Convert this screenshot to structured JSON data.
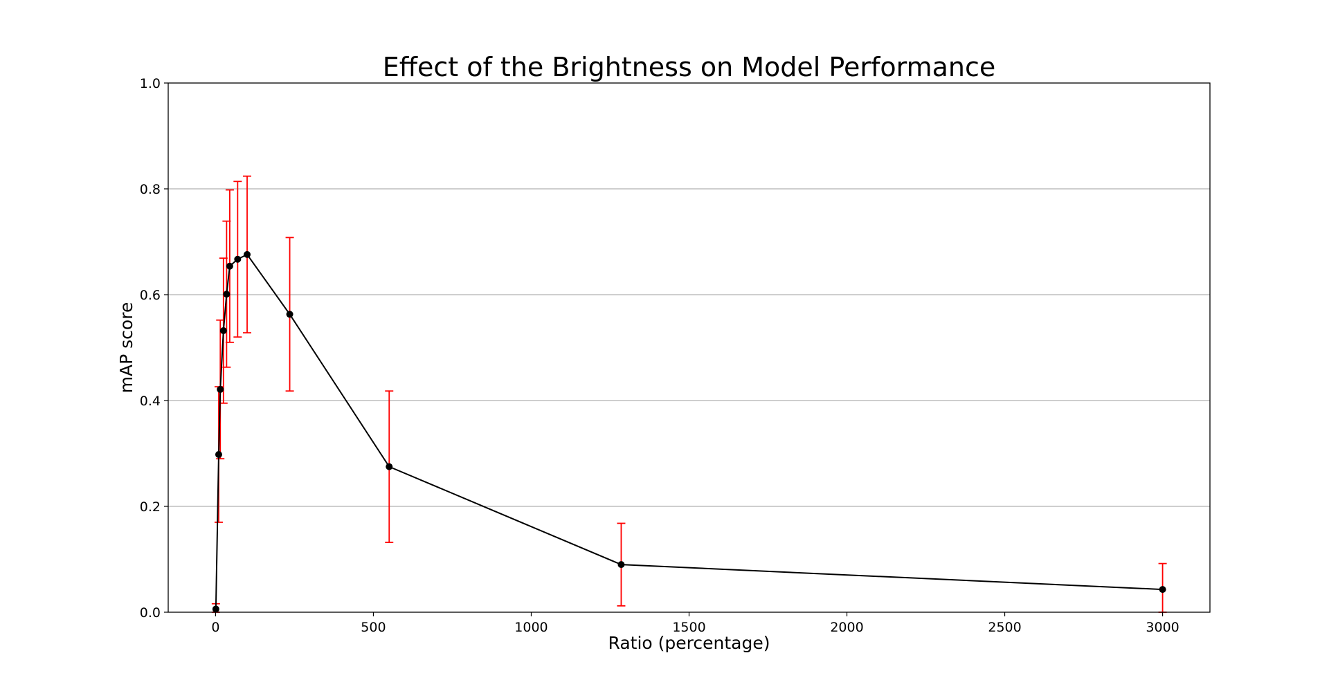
{
  "chart_data": {
    "type": "line",
    "title": "Effect of the Brightness on Model Performance",
    "xlabel": "Ratio (percentage)",
    "ylabel": "mAP score",
    "xlim": [
      -150,
      3150
    ],
    "ylim": [
      0.0,
      1.0
    ],
    "xticks": [
      0,
      500,
      1000,
      1500,
      2000,
      2500,
      3000
    ],
    "xtick_labels": [
      "0",
      "500",
      "1000",
      "1500",
      "2000",
      "2500",
      "3000"
    ],
    "yticks": [
      0.0,
      0.2,
      0.4,
      0.6,
      0.8,
      1.0
    ],
    "ytick_labels": [
      "0.0",
      "0.2",
      "0.4",
      "0.6",
      "0.8",
      "1.0"
    ],
    "grid": "y-axis",
    "series": [
      {
        "name": "mAP",
        "color": "#000000",
        "errorbar_color": "#ff0000",
        "x": [
          1,
          10,
          15,
          25,
          35,
          45,
          70,
          100,
          235,
          550,
          1285,
          3000
        ],
        "y": [
          0.006,
          0.298,
          0.421,
          0.532,
          0.601,
          0.654,
          0.667,
          0.676,
          0.563,
          0.275,
          0.09,
          0.043
        ],
        "yerr_low": [
          0.006,
          0.128,
          0.131,
          0.137,
          0.138,
          0.144,
          0.147,
          0.148,
          0.145,
          0.143,
          0.078,
          0.043
        ],
        "yerr_high": [
          0.01,
          0.128,
          0.131,
          0.137,
          0.138,
          0.144,
          0.147,
          0.148,
          0.145,
          0.143,
          0.078,
          0.049
        ]
      }
    ]
  }
}
